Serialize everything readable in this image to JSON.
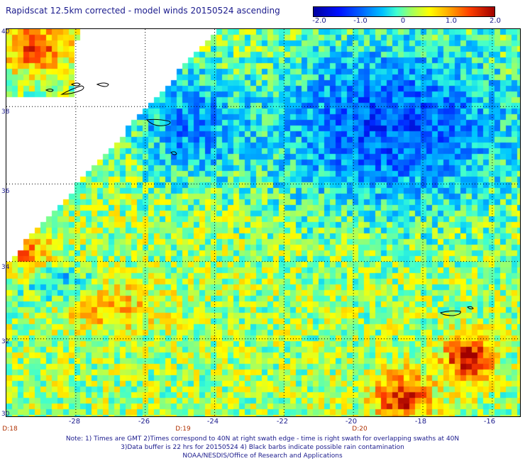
{
  "title": "Rapidscat 12.5km corrected - model winds 20150524 ascending",
  "colorbar": {
    "labels": [
      "-2.0",
      "-1.0",
      "0",
      "1.0",
      "2.0"
    ],
    "min": -2.0,
    "max": 2.0
  },
  "lat_labels": [
    "40",
    "38",
    "36",
    "34",
    "32",
    "30"
  ],
  "lon_labels": [
    "-28",
    "-26",
    "-24",
    "-22",
    "-20",
    "-18",
    "-16"
  ],
  "time_labels": [
    "D:18",
    "D:19",
    "D:20"
  ],
  "notes": {
    "line1": "Note: 1) Times are GMT 2)Times correspond to 40N at right swath edge - time is right swath for overlapping swaths at 40N",
    "line2": "3)Data buffer is 22 hrs for 20150524 4) Black barbs indicate possible rain contamination",
    "line3": "NOAA/NESDIS/Office of Research and Applications"
  },
  "map_data": {
    "lon_range": [
      -30,
      -15.2
    ],
    "lat_range": [
      30,
      40
    ],
    "grid_lons": [
      -28,
      -26,
      -24,
      -22,
      -20,
      -18,
      -16
    ],
    "grid_lats": [
      32,
      34,
      36,
      38
    ]
  }
}
